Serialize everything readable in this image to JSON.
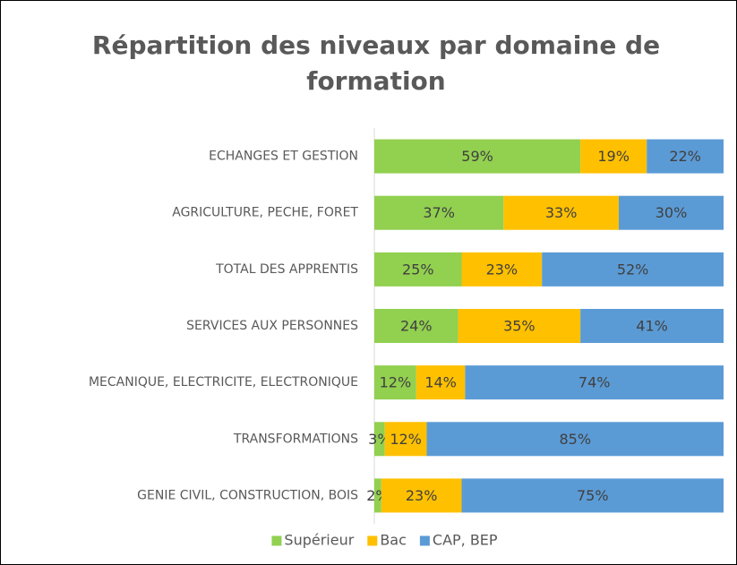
{
  "chart_data": {
    "type": "stacked-barh",
    "title": [
      "Répartition des niveaux par domaine de",
      "formation"
    ],
    "categories": [
      "ECHANGES ET GESTION",
      "AGRICULTURE, PECHE, FORET",
      "TOTAL DES APPRENTIS",
      "SERVICES AUX PERSONNES",
      "MECANIQUE, ELECTRICITE, ELECTRONIQUE",
      "TRANSFORMATIONS",
      "GENIE CIVIL, CONSTRUCTION, BOIS"
    ],
    "series": [
      {
        "name": "Supérieur",
        "color": "#92d050",
        "values": [
          59,
          37,
          25,
          24,
          12,
          3,
          2
        ],
        "value_labels": [
          "59%",
          "37%",
          "25%",
          "24%",
          "12%",
          "3%",
          "2%"
        ]
      },
      {
        "name": "Bac",
        "color": "#ffc000",
        "values": [
          19,
          33,
          23,
          35,
          14,
          12,
          23
        ],
        "value_labels": [
          "19%",
          "33%",
          "23%",
          "35%",
          "14%",
          "12%",
          "23%"
        ]
      },
      {
        "name": "CAP, BEP",
        "color": "#5b9bd5",
        "values": [
          22,
          30,
          52,
          41,
          74,
          85,
          75
        ],
        "value_labels": [
          "22%",
          "30%",
          "52%",
          "41%",
          "74%",
          "85%",
          "75%"
        ]
      }
    ],
    "legend": "bottom"
  }
}
